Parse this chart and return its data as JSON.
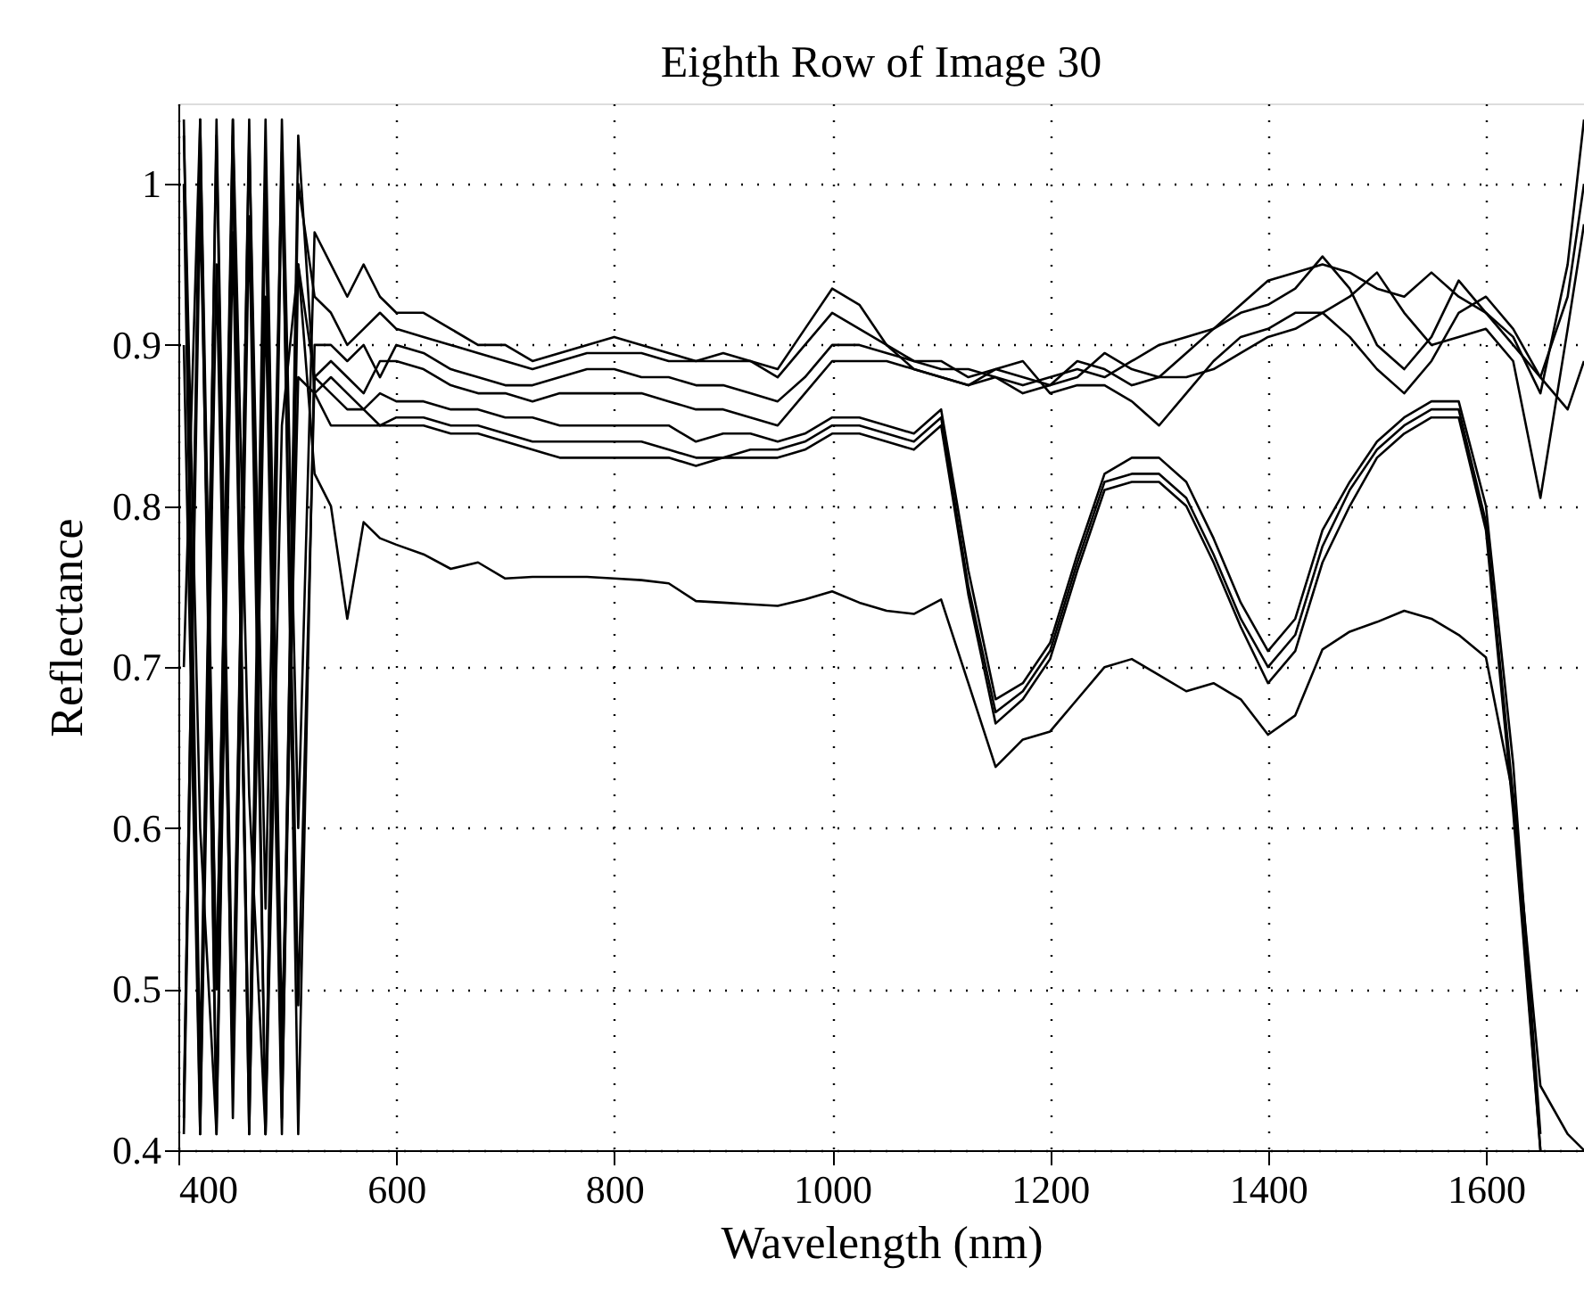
{
  "chart_data": {
    "type": "line",
    "title": "Eighth Row of Image 30",
    "xlabel": "Wavelength (nm)",
    "ylabel": "Reflectance",
    "x": [
      405,
      420,
      435,
      450,
      465,
      480,
      495,
      510,
      525,
      540,
      555,
      570,
      585,
      600,
      625,
      650,
      675,
      700,
      725,
      750,
      775,
      800,
      825,
      850,
      875,
      900,
      925,
      950,
      975,
      1000,
      1025,
      1050,
      1075,
      1100,
      1125,
      1150,
      1175,
      1200,
      1225,
      1250,
      1275,
      1300,
      1325,
      1350,
      1375,
      1400,
      1425,
      1450,
      1475,
      1500,
      1525,
      1550,
      1575,
      1600,
      1625,
      1650,
      1675,
      1690
    ],
    "series": [
      {
        "color": "#000000",
        "values": [
          1.04,
          0.45,
          1.03,
          0.42,
          0.98,
          0.41,
          1.04,
          0.6,
          0.97,
          0.95,
          0.93,
          0.95,
          0.93,
          0.92,
          0.92,
          0.91,
          0.9,
          0.9,
          0.89,
          0.895,
          0.9,
          0.905,
          0.9,
          0.895,
          0.89,
          0.89,
          0.89,
          0.885,
          0.91,
          0.935,
          0.925,
          0.9,
          0.89,
          0.885,
          0.885,
          0.88,
          0.875,
          0.88,
          0.885,
          0.88,
          0.89,
          0.9,
          0.905,
          0.91,
          0.925,
          0.94,
          0.945,
          0.95,
          0.945,
          0.935,
          0.93,
          0.945,
          0.93,
          0.92,
          0.905,
          0.87,
          0.95,
          1.04
        ]
      },
      {
        "color": "#000000",
        "values": [
          0.42,
          1.04,
          0.5,
          1.02,
          0.41,
          0.99,
          0.44,
          1.0,
          0.93,
          0.92,
          0.9,
          0.91,
          0.92,
          0.91,
          0.905,
          0.9,
          0.895,
          0.89,
          0.885,
          0.89,
          0.895,
          0.895,
          0.895,
          0.89,
          0.89,
          0.895,
          0.89,
          0.88,
          0.9,
          0.92,
          0.91,
          0.9,
          0.885,
          0.88,
          0.875,
          0.885,
          0.88,
          0.875,
          0.88,
          0.895,
          0.885,
          0.88,
          0.895,
          0.91,
          0.92,
          0.925,
          0.935,
          0.955,
          0.935,
          0.9,
          0.885,
          0.905,
          0.94,
          0.92,
          0.9,
          0.88,
          0.93,
          1.0
        ]
      },
      {
        "color": "#000000",
        "values": [
          0.9,
          0.41,
          1.04,
          0.47,
          1.03,
          0.55,
          1.02,
          0.41,
          0.9,
          0.9,
          0.89,
          0.9,
          0.88,
          0.9,
          0.895,
          0.885,
          0.88,
          0.875,
          0.875,
          0.88,
          0.885,
          0.885,
          0.88,
          0.88,
          0.875,
          0.875,
          0.87,
          0.865,
          0.88,
          0.9,
          0.9,
          0.895,
          0.89,
          0.89,
          0.88,
          0.885,
          0.89,
          0.87,
          0.875,
          0.875,
          0.865,
          0.85,
          0.87,
          0.89,
          0.905,
          0.91,
          0.92,
          0.92,
          0.905,
          0.885,
          0.87,
          0.89,
          0.92,
          0.93,
          0.91,
          0.88,
          0.86,
          0.89
        ]
      },
      {
        "color": "#000000",
        "values": [
          1.03,
          0.6,
          0.41,
          1.04,
          0.43,
          1.0,
          0.42,
          0.95,
          0.88,
          0.89,
          0.88,
          0.87,
          0.89,
          0.89,
          0.885,
          0.875,
          0.87,
          0.87,
          0.865,
          0.87,
          0.87,
          0.87,
          0.87,
          0.865,
          0.86,
          0.86,
          0.855,
          0.85,
          0.87,
          0.89,
          0.89,
          0.89,
          0.885,
          0.88,
          0.875,
          0.88,
          0.87,
          0.875,
          0.89,
          0.885,
          0.875,
          0.88,
          0.88,
          0.885,
          0.895,
          0.905,
          0.91,
          0.92,
          0.93,
          0.945,
          0.92,
          0.9,
          0.905,
          0.91,
          0.89,
          0.805,
          0.91,
          0.975
        ]
      },
      {
        "color": "#000000",
        "values": [
          0.43,
          1.02,
          0.41,
          0.97,
          0.44,
          1.04,
          0.47,
          0.88,
          0.87,
          0.88,
          0.87,
          0.86,
          0.87,
          0.865,
          0.865,
          0.86,
          0.86,
          0.855,
          0.855,
          0.85,
          0.85,
          0.85,
          0.85,
          0.85,
          0.84,
          0.845,
          0.845,
          0.84,
          0.845,
          0.855,
          0.855,
          0.85,
          0.845,
          0.86,
          0.76,
          0.68,
          0.69,
          0.715,
          0.77,
          0.82,
          0.83,
          0.83,
          0.815,
          0.78,
          0.74,
          0.71,
          0.73,
          0.785,
          0.815,
          0.84,
          0.855,
          0.865,
          0.865,
          0.8,
          0.64,
          0.41,
          null,
          null
        ]
      },
      {
        "color": "#000000",
        "values": [
          1.0,
          0.41,
          0.95,
          0.45,
          1.04,
          0.41,
          1.01,
          0.49,
          0.88,
          0.87,
          0.86,
          0.86,
          0.85,
          0.855,
          0.855,
          0.85,
          0.85,
          0.845,
          0.84,
          0.84,
          0.84,
          0.84,
          0.84,
          0.835,
          0.83,
          0.83,
          0.835,
          0.835,
          0.84,
          0.85,
          0.85,
          0.845,
          0.84,
          0.855,
          0.75,
          0.672,
          0.685,
          0.71,
          0.765,
          0.815,
          0.82,
          0.82,
          0.805,
          0.77,
          0.73,
          0.7,
          0.72,
          0.775,
          0.81,
          0.835,
          0.85,
          0.86,
          0.86,
          0.79,
          0.62,
          0.4,
          null,
          null
        ]
      },
      {
        "color": "#000000",
        "values": [
          0.7,
          1.04,
          0.42,
          1.03,
          0.41,
          0.93,
          0.41,
          1.03,
          0.87,
          0.85,
          0.85,
          0.85,
          0.85,
          0.85,
          0.85,
          0.845,
          0.845,
          0.84,
          0.835,
          0.83,
          0.83,
          0.83,
          0.83,
          0.83,
          0.825,
          0.83,
          0.83,
          0.83,
          0.835,
          0.845,
          0.845,
          0.84,
          0.835,
          0.85,
          0.745,
          0.665,
          0.68,
          0.705,
          0.76,
          0.81,
          0.815,
          0.815,
          0.8,
          0.765,
          0.725,
          0.69,
          0.71,
          0.765,
          0.8,
          0.83,
          0.845,
          0.855,
          0.855,
          0.785,
          0.61,
          0.4,
          null,
          null
        ]
      },
      {
        "color": "#000000",
        "values": [
          0.41,
          0.99,
          0.5,
          1.04,
          0.62,
          0.41,
          0.85,
          0.95,
          0.82,
          0.8,
          0.73,
          0.79,
          0.78,
          0.776,
          0.77,
          0.761,
          0.765,
          0.755,
          0.756,
          0.756,
          0.756,
          0.755,
          0.754,
          0.752,
          0.741,
          0.74,
          0.739,
          0.738,
          0.742,
          0.747,
          0.74,
          0.735,
          0.733,
          0.742,
          0.69,
          0.638,
          0.655,
          0.66,
          0.68,
          0.7,
          0.705,
          0.695,
          0.685,
          0.69,
          0.68,
          0.658,
          0.67,
          0.711,
          0.722,
          0.728,
          0.735,
          0.73,
          0.72,
          0.706,
          0.62,
          0.44,
          0.41,
          0.4
        ]
      }
    ],
    "xlim": [
      400,
      1690
    ],
    "xticks": [
      400,
      600,
      800,
      1000,
      1200,
      1400,
      1600
    ],
    "ylim": [
      0.4,
      1.05
    ],
    "yticks": [
      0.4,
      0.5,
      0.6,
      0.7,
      0.8,
      0.9,
      1
    ],
    "grid": true,
    "legend": false,
    "line_style": "solid",
    "marker": "none"
  }
}
